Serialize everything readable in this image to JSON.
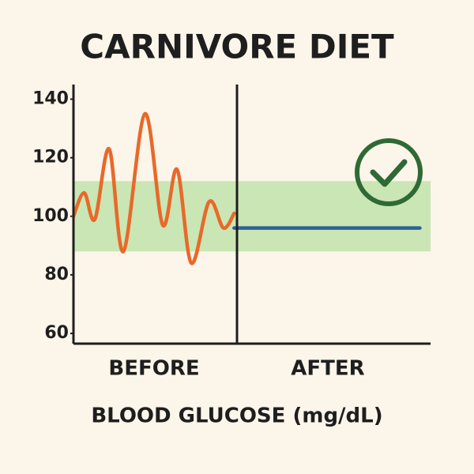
{
  "chart_data": {
    "type": "line",
    "title": "CARNIVORE DIET",
    "categories": [
      "BEFORE",
      "AFTER"
    ],
    "axis_label": "BLOOD GLUCOSE (mg/dL)",
    "xlim": [
      0,
      100
    ],
    "ylim": [
      56.5,
      145
    ],
    "yticks": [
      60,
      80,
      100,
      120,
      140
    ],
    "target_range": [
      88,
      112
    ],
    "target_color": "#c9e6b4",
    "series": [
      {
        "x": [
          0,
          3,
          6,
          10,
          14,
          20,
          25,
          29,
          33,
          38,
          42,
          45
        ],
        "values": [
          100,
          108,
          99,
          123,
          88,
          135,
          97,
          116,
          84,
          105,
          96,
          101
        ],
        "color": "#e8692a"
      },
      {
        "x": [
          45,
          97
        ],
        "values": [
          96,
          96
        ],
        "color": "#2f5f95"
      }
    ]
  }
}
